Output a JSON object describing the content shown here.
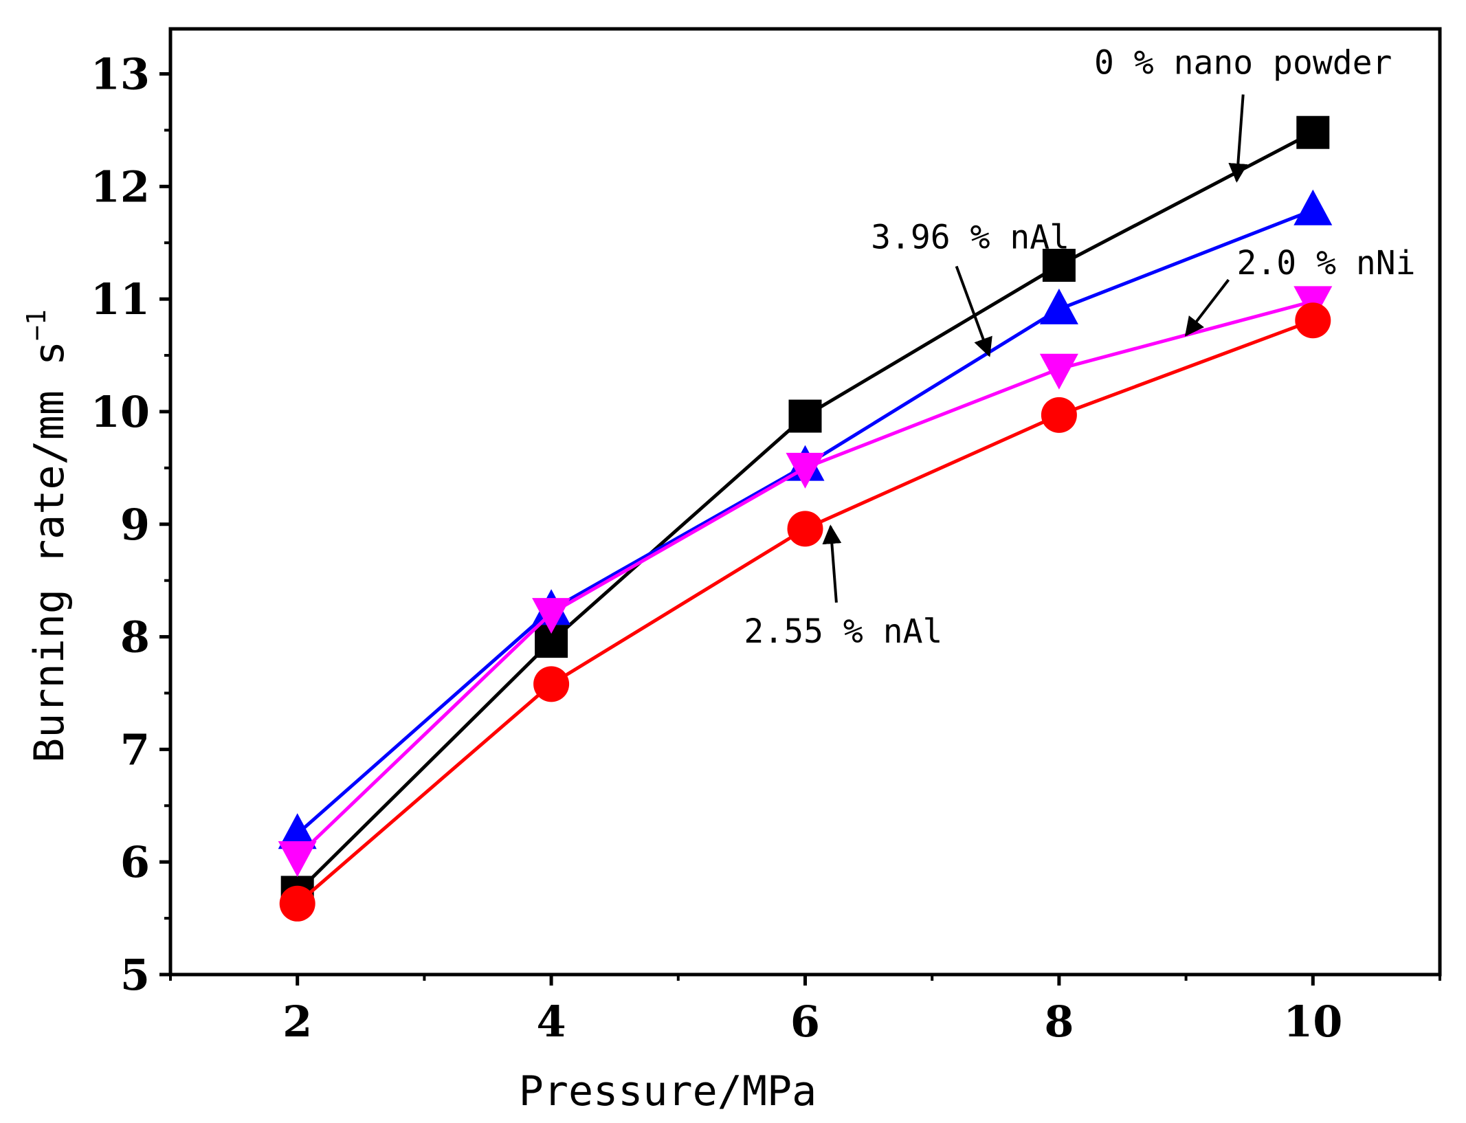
{
  "chart_data": {
    "type": "line",
    "title": "",
    "xlabel": "Pressure/MPa",
    "ylabel": "Burning rate/mm s",
    "ylabel_sup": "−1",
    "xlim": [
      1,
      11
    ],
    "ylim": [
      5,
      13.4
    ],
    "xticks": [
      2,
      4,
      6,
      8,
      10
    ],
    "yticks": [
      5,
      6,
      7,
      8,
      9,
      10,
      11,
      12,
      13
    ],
    "grid": false,
    "x": [
      2,
      4,
      6,
      8,
      10
    ],
    "series": [
      {
        "name": "0 % nano powder",
        "color": "#000000",
        "marker": "square",
        "values": [
          5.73,
          7.96,
          9.96,
          11.3,
          12.48
        ]
      },
      {
        "name": "3.96 % nAl",
        "color": "#0000ff",
        "marker": "triangle-up",
        "values": [
          6.25,
          8.24,
          9.52,
          10.91,
          11.79
        ]
      },
      {
        "name": "2.0 % nNi",
        "color": "#ff00ff",
        "marker": "triangle-down",
        "values": [
          6.05,
          8.21,
          9.5,
          10.38,
          10.98
        ]
      },
      {
        "name": "2.55 % nAl",
        "color": "#ff0000",
        "marker": "circle",
        "values": [
          5.63,
          7.58,
          8.96,
          9.97,
          10.81
        ]
      }
    ],
    "annotations": [
      {
        "text": "0 % nano powder",
        "series": 0,
        "arrow_to_x": 9.4,
        "arrow_to_y": 12.05,
        "text_x": 9.45,
        "text_y": 13.0
      },
      {
        "text": "3.96 % nAl",
        "series": 1,
        "arrow_to_x": 7.45,
        "arrow_to_y": 10.5,
        "text_x": 7.3,
        "text_y": 11.45
      },
      {
        "text": "2.0 % nNi",
        "series": 2,
        "arrow_to_x": 9.0,
        "arrow_to_y": 10.68,
        "text_x": 9.4,
        "text_y": 11.22
      },
      {
        "text": "2.55 % nAl",
        "series": 3,
        "arrow_to_x": 6.2,
        "arrow_to_y": 8.98,
        "text_x": 6.3,
        "text_y": 7.95
      }
    ]
  }
}
